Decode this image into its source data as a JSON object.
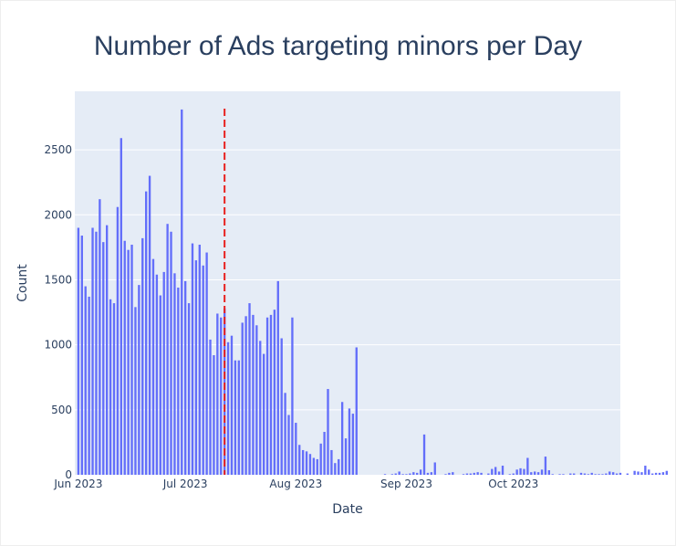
{
  "chart_data": {
    "type": "bar",
    "title": "Number of Ads targeting minors per Day",
    "xlabel": "Date",
    "ylabel": "Count",
    "x_start": "2023-06-01",
    "x_range": [
      "2023-05-31",
      "2023-10-31"
    ],
    "ylim": [
      0,
      2950
    ],
    "y_ticks": [
      0,
      500,
      1000,
      1500,
      2000,
      2500
    ],
    "x_tick_dates": [
      "2023-06-01",
      "2023-07-01",
      "2023-08-01",
      "2023-09-01",
      "2023-10-01"
    ],
    "x_tick_labels": [
      "Jun 2023",
      "Jul 2023",
      "Aug 2023",
      "Sep 2023",
      "Oct 2023"
    ],
    "grid": true,
    "bar_color": "#636efa",
    "plot_bg": "#e5ecf6",
    "marker_line": {
      "date": "2023-07-12",
      "color": "#e8201e",
      "style": "dashed"
    },
    "values": [
      1900,
      1840,
      1450,
      1370,
      1900,
      1870,
      2120,
      1790,
      1920,
      1350,
      1320,
      2060,
      2590,
      1800,
      1730,
      1770,
      1290,
      1460,
      1820,
      2180,
      2300,
      1660,
      1540,
      1380,
      1560,
      1930,
      1870,
      1550,
      1440,
      2810,
      1490,
      1320,
      1780,
      1650,
      1770,
      1610,
      1710,
      1040,
      920,
      1240,
      1210,
      1280,
      1020,
      1070,
      880,
      880,
      1170,
      1220,
      1320,
      1230,
      1150,
      1030,
      930,
      1210,
      1230,
      1270,
      1490,
      1050,
      630,
      460,
      1210,
      400,
      230,
      190,
      180,
      160,
      130,
      120,
      240,
      330,
      660,
      190,
      90,
      120,
      560,
      280,
      510,
      470,
      980,
      0,
      0,
      0,
      0,
      0,
      0,
      0,
      5,
      0,
      5,
      10,
      25,
      5,
      5,
      10,
      20,
      15,
      40,
      310,
      15,
      20,
      95,
      0,
      0,
      5,
      15,
      20,
      0,
      0,
      5,
      10,
      10,
      15,
      20,
      15,
      0,
      10,
      45,
      60,
      25,
      70,
      0,
      5,
      10,
      40,
      50,
      45,
      130,
      20,
      25,
      20,
      40,
      140,
      35,
      5,
      0,
      5,
      5,
      0,
      10,
      10,
      0,
      15,
      10,
      5,
      15,
      5,
      5,
      5,
      10,
      25,
      20,
      10,
      15,
      0,
      10,
      0,
      30,
      25,
      20,
      70,
      40,
      10,
      15,
      15,
      20,
      30
    ]
  }
}
